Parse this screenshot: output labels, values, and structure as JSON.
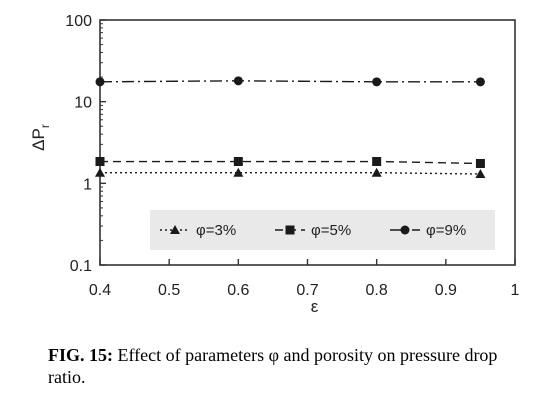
{
  "chart_data": {
    "type": "line",
    "xlabel": "ε",
    "ylabel": "ΔPr",
    "xlim": [
      0.4,
      1.0
    ],
    "ylim": [
      0.1,
      100
    ],
    "yscale": "log",
    "x_ticks": [
      "0.4",
      "0.5",
      "0.6",
      "0.7",
      "0.8",
      "0.9",
      "1"
    ],
    "y_ticks": [
      "100",
      "10",
      "1",
      "0.1"
    ],
    "grid": false,
    "legend_position": "bottom-right",
    "series": [
      {
        "name": "φ=3%",
        "marker": "triangle",
        "dash": "dotted",
        "x": [
          0.4,
          0.6,
          0.8,
          0.95
        ],
        "y": [
          1.35,
          1.35,
          1.35,
          1.3
        ]
      },
      {
        "name": "φ=5%",
        "marker": "square",
        "dash": "dashed",
        "x": [
          0.4,
          0.6,
          0.8,
          0.95
        ],
        "y": [
          1.85,
          1.85,
          1.85,
          1.75
        ]
      },
      {
        "name": "φ=9%",
        "marker": "circle",
        "dash": "dashdot",
        "x": [
          0.4,
          0.6,
          0.8,
          0.95
        ],
        "y": [
          17.5,
          18.0,
          17.5,
          17.5
        ]
      }
    ]
  },
  "caption": {
    "label": "FIG. 15:",
    "text": " Effect of parameters φ and porosity on pressure drop ratio."
  },
  "colors": {
    "axis": "#333333",
    "series": "#1a1a1a",
    "legend_bg": "#e9e9e9"
  }
}
